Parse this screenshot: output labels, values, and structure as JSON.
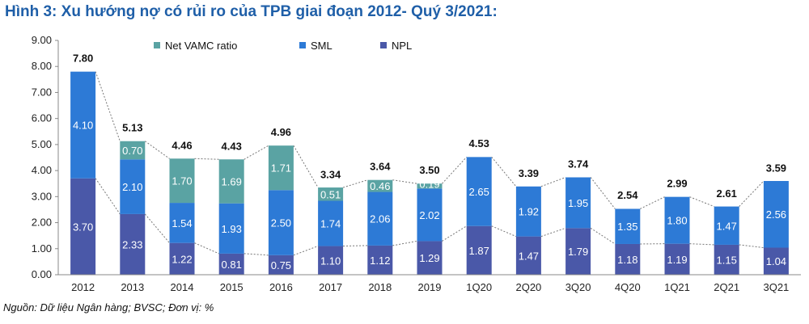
{
  "title": "Hình 3: Xu hướng nợ có rủi ro của TPB giai đoạn 2012- Quý 3/2021:",
  "source": "Nguồn: Dữ liệu Ngân hàng; BVSC; Đơn vị: %",
  "colors": {
    "npl": "#4a58a8",
    "sml": "#2d7ad6",
    "vamc": "#5aa3a3"
  },
  "chart_data": {
    "type": "bar",
    "stacked": true,
    "categories": [
      "2012",
      "2013",
      "2014",
      "2015",
      "2016",
      "2017",
      "2018",
      "2019",
      "1Q20",
      "2Q20",
      "3Q20",
      "4Q20",
      "1Q21",
      "2Q21",
      "3Q21"
    ],
    "series": [
      {
        "name": "NPL",
        "values": [
          3.7,
          2.33,
          1.22,
          0.81,
          0.75,
          1.1,
          1.12,
          1.29,
          1.87,
          1.47,
          1.79,
          1.18,
          1.19,
          1.15,
          1.04
        ]
      },
      {
        "name": "SML",
        "values": [
          4.1,
          2.1,
          1.54,
          1.93,
          2.5,
          1.74,
          2.06,
          2.02,
          2.65,
          1.92,
          1.95,
          1.35,
          1.8,
          1.47,
          2.56
        ]
      },
      {
        "name": "Net VAMC ratio",
        "values": [
          null,
          0.7,
          1.7,
          1.69,
          1.71,
          0.51,
          0.46,
          0.19,
          null,
          null,
          null,
          null,
          null,
          null,
          null
        ]
      }
    ],
    "totals": [
      7.8,
      5.13,
      4.46,
      4.43,
      4.96,
      3.34,
      3.64,
      3.5,
      4.53,
      3.39,
      3.74,
      2.54,
      2.99,
      2.61,
      3.59
    ],
    "yticks": [
      "0.00",
      "1.00",
      "2.00",
      "3.00",
      "4.00",
      "5.00",
      "6.00",
      "7.00",
      "8.00",
      "9.00"
    ],
    "ylim": [
      0,
      9
    ],
    "legend": [
      "Net VAMC ratio",
      "SML",
      "NPL"
    ],
    "legend_position": "top",
    "grid": false
  }
}
